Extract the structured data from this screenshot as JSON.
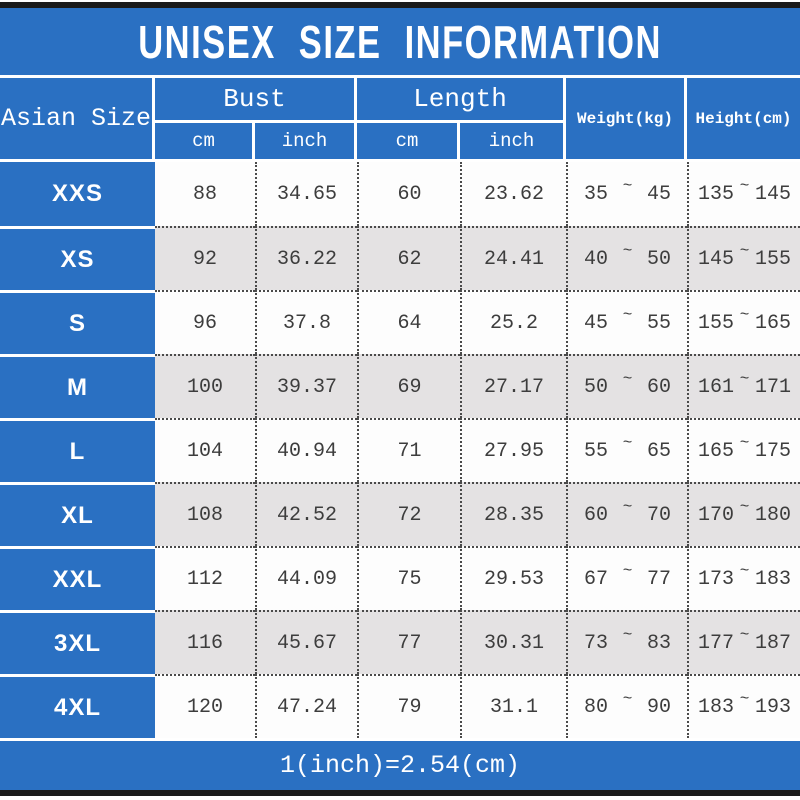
{
  "title": "UNISEX SIZE INFORMATION",
  "header": {
    "size_col": "Asian Size",
    "groups": [
      {
        "label": "Bust",
        "units": [
          "cm",
          "inch"
        ]
      },
      {
        "label": "Length",
        "units": [
          "cm",
          "inch"
        ]
      }
    ],
    "weight": "Weight(kg)",
    "height": "Height(cm)"
  },
  "tilde": "~",
  "rows": [
    {
      "size": "XXS",
      "bust_cm": "88",
      "bust_inch": "34.65",
      "length_cm": "60",
      "length_inch": "23.62",
      "weight_min": "35",
      "weight_max": "45",
      "height_min": "135",
      "height_max": "145"
    },
    {
      "size": "XS",
      "bust_cm": "92",
      "bust_inch": "36.22",
      "length_cm": "62",
      "length_inch": "24.41",
      "weight_min": "40",
      "weight_max": "50",
      "height_min": "145",
      "height_max": "155"
    },
    {
      "size": "S",
      "bust_cm": "96",
      "bust_inch": "37.8",
      "length_cm": "64",
      "length_inch": "25.2",
      "weight_min": "45",
      "weight_max": "55",
      "height_min": "155",
      "height_max": "165"
    },
    {
      "size": "M",
      "bust_cm": "100",
      "bust_inch": "39.37",
      "length_cm": "69",
      "length_inch": "27.17",
      "weight_min": "50",
      "weight_max": "60",
      "height_min": "161",
      "height_max": "171"
    },
    {
      "size": "L",
      "bust_cm": "104",
      "bust_inch": "40.94",
      "length_cm": "71",
      "length_inch": "27.95",
      "weight_min": "55",
      "weight_max": "65",
      "height_min": "165",
      "height_max": "175"
    },
    {
      "size": "XL",
      "bust_cm": "108",
      "bust_inch": "42.52",
      "length_cm": "72",
      "length_inch": "28.35",
      "weight_min": "60",
      "weight_max": "70",
      "height_min": "170",
      "height_max": "180"
    },
    {
      "size": "XXL",
      "bust_cm": "112",
      "bust_inch": "44.09",
      "length_cm": "75",
      "length_inch": "29.53",
      "weight_min": "67",
      "weight_max": "77",
      "height_min": "173",
      "height_max": "183"
    },
    {
      "size": "3XL",
      "bust_cm": "116",
      "bust_inch": "45.67",
      "length_cm": "77",
      "length_inch": "30.31",
      "weight_min": "73",
      "weight_max": "83",
      "height_min": "177",
      "height_max": "187"
    },
    {
      "size": "4XL",
      "bust_cm": "120",
      "bust_inch": "47.24",
      "length_cm": "79",
      "length_inch": "31.1",
      "weight_min": "80",
      "weight_max": "90",
      "height_min": "183",
      "height_max": "193"
    }
  ],
  "footer": "1(inch)=2.54(cm)",
  "colors": {
    "blue": "#2a70c2",
    "black_bar": "#1a1a1a",
    "gray_row": "#e4e2e3",
    "text": "#3d3d3d",
    "dotted_line": "#4a4a4a"
  }
}
